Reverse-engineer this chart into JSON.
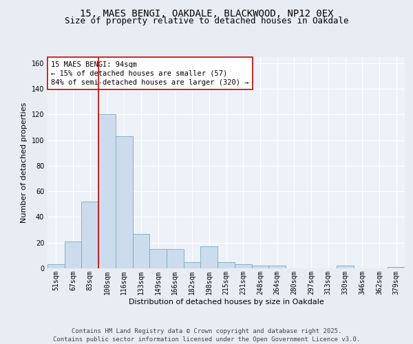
{
  "title_line1": "15, MAES BENGI, OAKDALE, BLACKWOOD, NP12 0EX",
  "title_line2": "Size of property relative to detached houses in Oakdale",
  "xlabel": "Distribution of detached houses by size in Oakdale",
  "ylabel": "Number of detached properties",
  "categories": [
    "51sqm",
    "67sqm",
    "83sqm",
    "100sqm",
    "116sqm",
    "133sqm",
    "149sqm",
    "166sqm",
    "182sqm",
    "198sqm",
    "215sqm",
    "231sqm",
    "248sqm",
    "264sqm",
    "280sqm",
    "297sqm",
    "313sqm",
    "330sqm",
    "346sqm",
    "362sqm",
    "379sqm"
  ],
  "values": [
    3,
    21,
    52,
    120,
    103,
    27,
    15,
    15,
    5,
    17,
    5,
    3,
    2,
    2,
    0,
    0,
    0,
    2,
    0,
    0,
    1
  ],
  "bar_color": "#ccdcec",
  "bar_edge_color": "#7aaabb",
  "bar_linewidth": 0.6,
  "vline_x": 2.5,
  "vline_color": "#cc0000",
  "annotation_text": "15 MAES BENGI: 94sqm\n← 15% of detached houses are smaller (57)\n84% of semi-detached houses are larger (320) →",
  "annotation_box_color": "#ffffff",
  "annotation_box_edge": "#cc0000",
  "ylim": [
    0,
    165
  ],
  "yticks": [
    0,
    20,
    40,
    60,
    80,
    100,
    120,
    140,
    160
  ],
  "background_color": "#e8edf4",
  "plot_bg_color": "#edf1f8",
  "grid_color": "#ffffff",
  "footer_text": "Contains HM Land Registry data © Crown copyright and database right 2025.\nContains public sector information licensed under the Open Government Licence v3.0.",
  "title_fontsize": 10,
  "subtitle_fontsize": 9,
  "axis_label_fontsize": 8,
  "tick_fontsize": 7,
  "annotation_fontsize": 7.5,
  "footer_fontsize": 6.5
}
